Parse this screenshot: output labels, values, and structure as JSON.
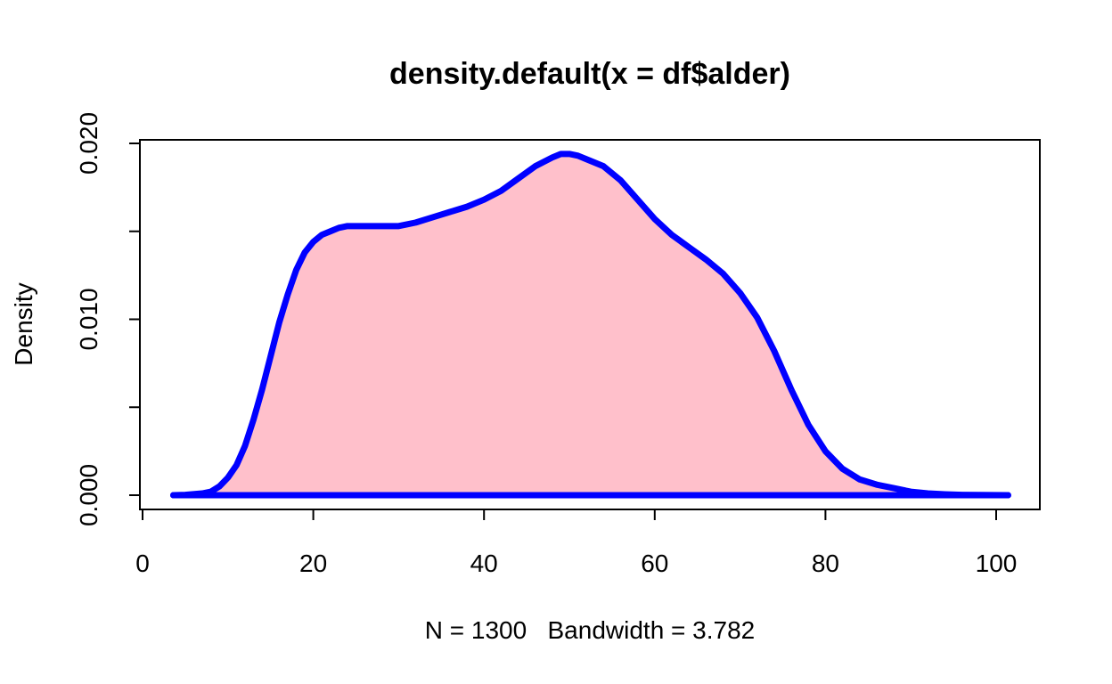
{
  "colors": {
    "line": "#0000ff",
    "fill": "#ffc0cb",
    "axis": "#000000",
    "background": "#ffffff"
  },
  "chart_data": {
    "type": "area",
    "title": "density.default(x = df$alder)",
    "xlabel": "N = 1300   Bandwidth = 3.782",
    "ylabel": "Density",
    "xlim": [
      0,
      105
    ],
    "ylim": [
      0,
      0.0202
    ],
    "x_ticks": [
      0,
      20,
      40,
      60,
      80,
      100
    ],
    "x_tick_labels": [
      "0",
      "20",
      "40",
      "60",
      "80",
      "100"
    ],
    "y_ticks": [
      0,
      0.005,
      0.01,
      0.015,
      0.02
    ],
    "y_tick_labels": [
      "0.000",
      "",
      "0.010",
      "",
      "0.020"
    ],
    "grid": false,
    "series": [
      {
        "x": [
          3.6,
          5,
          7,
          8,
          9,
          10,
          11,
          12,
          13,
          14,
          15,
          16,
          17,
          18,
          19,
          20,
          21,
          22,
          23,
          24,
          25,
          26,
          28,
          30,
          32,
          34,
          36,
          38,
          40,
          42,
          44,
          46,
          48,
          49,
          50,
          51,
          52,
          54,
          56,
          58,
          60,
          62,
          64,
          66,
          68,
          70,
          72,
          74,
          76,
          78,
          80,
          82,
          84,
          86,
          88,
          90,
          92,
          94,
          96,
          98,
          101.4
        ],
        "y": [
          0,
          2e-05,
          0.0001,
          0.0002,
          0.0005,
          0.001,
          0.0017,
          0.0028,
          0.0043,
          0.006,
          0.0079,
          0.0098,
          0.0114,
          0.0128,
          0.0138,
          0.0144,
          0.0148,
          0.015,
          0.0152,
          0.0153,
          0.0153,
          0.0153,
          0.0153,
          0.0153,
          0.0155,
          0.0158,
          0.0161,
          0.0164,
          0.0168,
          0.0173,
          0.018,
          0.0187,
          0.0192,
          0.0194,
          0.0194,
          0.0193,
          0.0191,
          0.0187,
          0.0179,
          0.0168,
          0.0157,
          0.0148,
          0.0141,
          0.0134,
          0.0126,
          0.0115,
          0.0101,
          0.0082,
          0.006,
          0.004,
          0.0025,
          0.0015,
          0.0009,
          0.0006,
          0.0004,
          0.0002,
          0.0001,
          5e-05,
          2e-05,
          1e-05,
          0
        ]
      }
    ]
  }
}
